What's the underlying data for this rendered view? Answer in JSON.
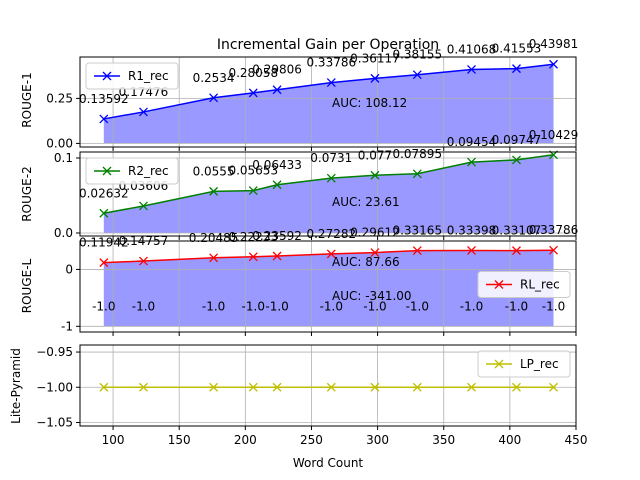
{
  "title": "Incremental Gain per Operation",
  "xlabel": "Word Count",
  "x_ticks": [
    100,
    150,
    200,
    250,
    300,
    350,
    400,
    450
  ],
  "chart_data": [
    {
      "type": "line",
      "ylabel": "ROUGE-1",
      "series": [
        {
          "name": "R1_rec",
          "color": "#0000ff",
          "marker": "x",
          "x": [
            93,
            123,
            176,
            206,
            224,
            265,
            298,
            330,
            371,
            405,
            433
          ],
          "values": [
            0.13592,
            0.17476,
            0.2534,
            0.28058,
            0.29806,
            0.33786,
            0.36117,
            0.38155,
            0.41068,
            0.41553,
            0.43981
          ]
        }
      ],
      "labels": [
        "0.13592",
        "0.17476",
        "0.2534",
        "0.28058",
        "0.29806",
        "0.33786",
        "0.36117",
        "0.38155",
        "0.41068",
        "0.41553",
        "0.43981"
      ],
      "y_ticks": [
        0.0,
        0.25
      ],
      "y_tick_labels": [
        "0.00",
        "0.25"
      ],
      "ylim": [
        -0.02,
        0.48
      ],
      "fill_color": "#9999ff",
      "auc": "AUC: 108.12",
      "legend": "upper left"
    },
    {
      "type": "line",
      "ylabel": "ROUGE-2",
      "series": [
        {
          "name": "R2_rec",
          "color": "#008000",
          "marker": "x",
          "x": [
            93,
            123,
            176,
            206,
            224,
            265,
            298,
            330,
            371,
            405,
            433
          ],
          "values": [
            0.02632,
            0.03606,
            0.0555,
            0.05653,
            0.06433,
            0.0731,
            0.077,
            0.07895,
            0.09454,
            0.09747,
            0.10429
          ]
        }
      ],
      "labels": [
        "0.02632",
        "0.03606",
        "0.0555",
        "0.05653",
        "0.06433",
        "0.0731",
        "0.077",
        "0.07895",
        "0.09454",
        "0.09747",
        "0.10429"
      ],
      "y_ticks": [
        0.0,
        0.1
      ],
      "y_tick_labels": [
        "0.0",
        "0.1"
      ],
      "ylim": [
        -0.004,
        0.108
      ],
      "fill_color": "#9999ff",
      "auc": "AUC: 23.61",
      "legend": "upper left"
    },
    {
      "type": "line",
      "ylabel": "ROUGE-L",
      "series": [
        {
          "name": "RL_rec",
          "color": "#ff0000",
          "marker": "x",
          "x": [
            93,
            123,
            176,
            206,
            224,
            265,
            298,
            330,
            371,
            405,
            433
          ],
          "values": [
            0.11942,
            0.14757,
            0.20485,
            0.22233,
            0.23592,
            0.27282,
            0.29612,
            0.33165,
            0.33398,
            0.33107,
            0.33786
          ]
        },
        {
          "name": "",
          "color": "#9999ff",
          "x": [
            93,
            123,
            176,
            206,
            224,
            265,
            298,
            330,
            371,
            405,
            433
          ],
          "values": [
            -1.0,
            -1.0,
            -1.0,
            -1.0,
            -1.0,
            -1.0,
            -1.0,
            -1.0,
            -1.0,
            -1.0,
            -1.0
          ]
        }
      ],
      "labels": [
        "0.11942",
        "0.14757",
        "0.20485",
        "0.22233",
        "0.23592",
        "0.27282",
        "0.29612",
        "0.33165",
        "0.33398",
        "0.33107",
        "0.33786"
      ],
      "neg_labels": [
        "-1.0",
        "-1.0",
        "-1.0",
        "-1.0",
        "-1.0",
        "-1.0",
        "-1.0",
        "-1.0",
        "-1.0",
        "-1.0",
        "-1.0"
      ],
      "y_ticks": [
        0,
        -1
      ],
      "y_tick_labels": [
        "0",
        "-1"
      ],
      "ylim": [
        -1.1,
        0.5
      ],
      "fill_color": "#9999ff",
      "auc": "AUC: 87.66",
      "auc2": "AUC: -341.00",
      "legend": "center right"
    },
    {
      "type": "line",
      "ylabel": "Lite-Pyramid",
      "series": [
        {
          "name": "LP_rec",
          "color": "#bfbf00",
          "marker": "x",
          "x": [
            93,
            123,
            176,
            206,
            224,
            265,
            298,
            330,
            371,
            405,
            433
          ],
          "values": [
            -1.0,
            -1.0,
            -1.0,
            -1.0,
            -1.0,
            -1.0,
            -1.0,
            -1.0,
            -1.0,
            -1.0,
            -1.0
          ]
        }
      ],
      "y_ticks": [
        -0.95,
        -1.0,
        -1.05
      ],
      "y_tick_labels": [
        "−0.95",
        "−1.00",
        "−1.05"
      ],
      "ylim": [
        -1.055,
        -0.94
      ],
      "legend": "upper right"
    }
  ]
}
